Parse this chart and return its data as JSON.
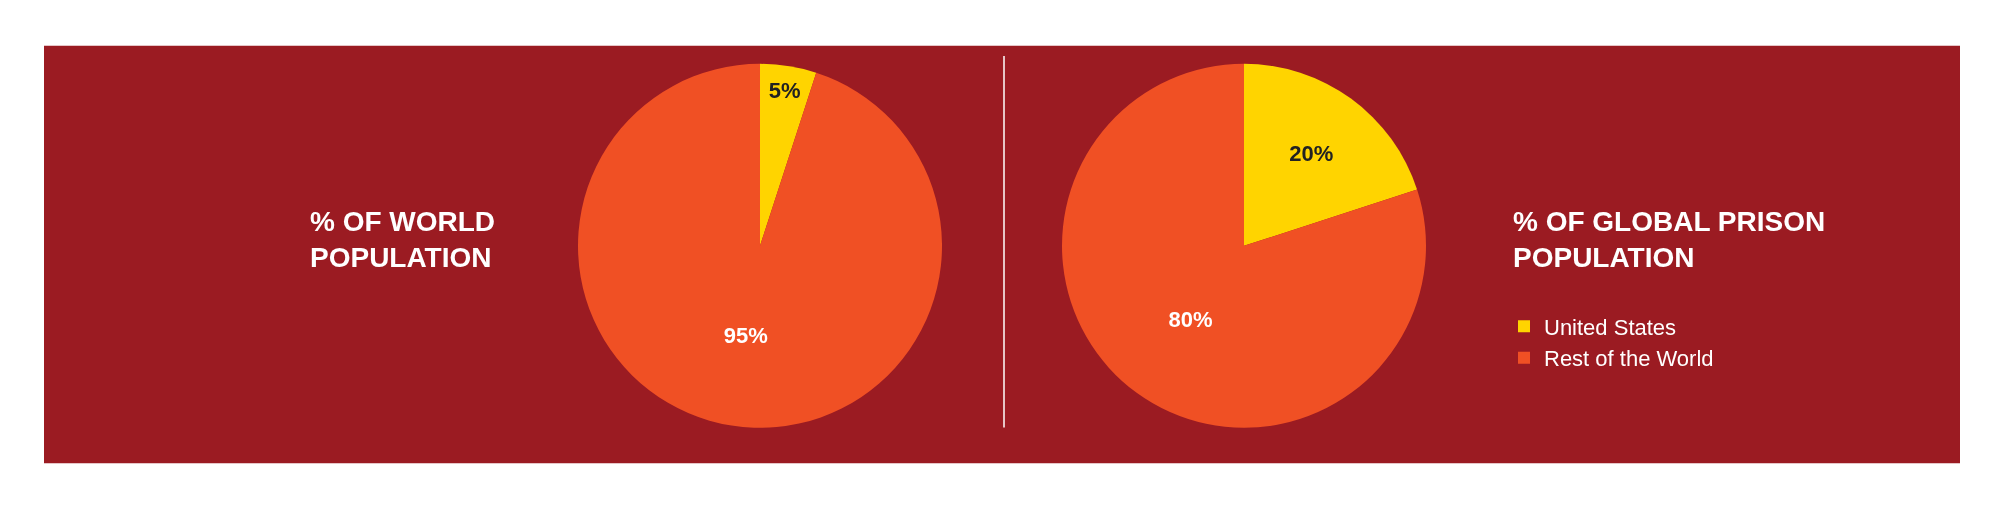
{
  "chart_data": [
    {
      "type": "pie",
      "title": "% OF WORLD POPULATION",
      "categories": [
        "United States",
        "Rest of the World"
      ],
      "values": [
        5,
        95
      ],
      "value_labels": [
        "5%",
        "95%"
      ],
      "colors": [
        "#ffd400",
        "#f05024"
      ],
      "legend": "right"
    },
    {
      "type": "pie",
      "title": "% OF GLOBAL PRISON POPULATION",
      "categories": [
        null,
        null
      ],
      "values": [
        20,
        80
      ],
      "value_labels": [
        "20%",
        "80%"
      ],
      "colors": [
        "#ffd400",
        "#f05024"
      ]
    }
  ]
}
